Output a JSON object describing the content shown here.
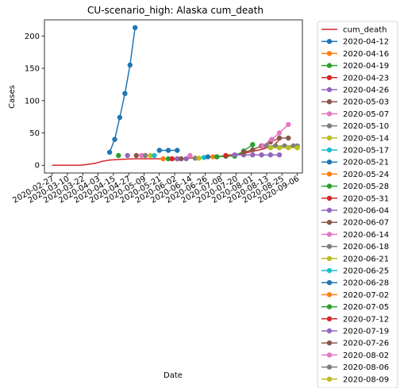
{
  "chart_data": {
    "type": "line",
    "title": "CU-scenario_high: Alaska cum_death",
    "xlabel": "Date",
    "ylabel": "Cases",
    "ylim": [
      -12,
      225
    ],
    "xlim": [
      "2020-02-21",
      "2020-09-10"
    ],
    "yticks": [
      0,
      50,
      100,
      150,
      200
    ],
    "xticks": [
      "2020-02-27",
      "2020-03-10",
      "2020-03-22",
      "2020-04-03",
      "2020-04-15",
      "2020-04-27",
      "2020-05-09",
      "2020-05-21",
      "2020-06-02",
      "2020-06-14",
      "2020-06-26",
      "2020-07-08",
      "2020-07-20",
      "2020-08-01",
      "2020-08-13",
      "2020-08-25",
      "2020-09-06"
    ],
    "grid": false,
    "legend_position": "outside-right",
    "observed": {
      "name": "cum_death",
      "color": "#d62728",
      "points": [
        [
          "2020-02-27",
          0
        ],
        [
          "2020-03-10",
          0
        ],
        [
          "2020-03-20",
          0
        ],
        [
          "2020-03-25",
          1
        ],
        [
          "2020-03-28",
          2
        ],
        [
          "2020-04-01",
          3
        ],
        [
          "2020-04-06",
          6
        ],
        [
          "2020-04-12",
          8
        ],
        [
          "2020-04-20",
          9
        ],
        [
          "2020-05-01",
          10
        ],
        [
          "2020-05-20",
          10
        ],
        [
          "2020-06-02",
          10
        ],
        [
          "2020-06-12",
          11
        ],
        [
          "2020-06-25",
          12
        ],
        [
          "2020-07-05",
          13
        ],
        [
          "2020-07-15",
          16
        ],
        [
          "2020-07-25",
          18
        ],
        [
          "2020-08-01",
          21
        ],
        [
          "2020-08-10",
          25
        ],
        [
          "2020-08-18",
          30
        ],
        [
          "2020-08-25",
          43
        ]
      ]
    },
    "series": [
      {
        "name": "2020-04-12",
        "color": "#1f77b4",
        "points": [
          [
            "2020-04-12",
            20
          ],
          [
            "2020-04-16",
            40
          ],
          [
            "2020-04-20",
            74
          ],
          [
            "2020-04-24",
            111
          ],
          [
            "2020-04-28",
            155
          ],
          [
            "2020-05-02",
            213
          ]
        ]
      },
      {
        "name": "2020-04-16",
        "color": "#ff7f0e",
        "points": []
      },
      {
        "name": "2020-04-19",
        "color": "#2ca02c",
        "points": [
          [
            "2020-04-19",
            15
          ]
        ]
      },
      {
        "name": "2020-04-23",
        "color": "#d62728",
        "points": []
      },
      {
        "name": "2020-04-26",
        "color": "#9467bd",
        "points": [
          [
            "2020-04-26",
            15
          ]
        ]
      },
      {
        "name": "2020-05-03",
        "color": "#8c564b",
        "points": [
          [
            "2020-05-03",
            15
          ]
        ]
      },
      {
        "name": "2020-05-07",
        "color": "#e377c2",
        "points": [
          [
            "2020-05-07",
            15
          ]
        ]
      },
      {
        "name": "2020-05-10",
        "color": "#7f7f7f",
        "points": [
          [
            "2020-05-10",
            15
          ]
        ]
      },
      {
        "name": "2020-05-14",
        "color": "#bcbd22",
        "points": [
          [
            "2020-05-14",
            15
          ]
        ]
      },
      {
        "name": "2020-05-17",
        "color": "#17becf",
        "points": [
          [
            "2020-05-17",
            15
          ]
        ]
      },
      {
        "name": "2020-05-21",
        "color": "#1f77b4",
        "points": [
          [
            "2020-05-21",
            23
          ],
          [
            "2020-05-28",
            23
          ],
          [
            "2020-06-04",
            23
          ]
        ]
      },
      {
        "name": "2020-05-24",
        "color": "#ff7f0e",
        "points": [
          [
            "2020-05-24",
            10
          ]
        ]
      },
      {
        "name": "2020-05-28",
        "color": "#2ca02c",
        "points": [
          [
            "2020-05-28",
            10
          ]
        ]
      },
      {
        "name": "2020-05-31",
        "color": "#d62728",
        "points": [
          [
            "2020-05-31",
            10
          ],
          [
            "2020-06-04",
            10
          ]
        ]
      },
      {
        "name": "2020-06-04",
        "color": "#9467bd",
        "points": [
          [
            "2020-06-04",
            10
          ],
          [
            "2020-06-11",
            10
          ]
        ]
      },
      {
        "name": "2020-06-07",
        "color": "#8c564b",
        "points": [
          [
            "2020-06-07",
            10
          ]
        ]
      },
      {
        "name": "2020-06-14",
        "color": "#e377c2",
        "points": [
          [
            "2020-06-14",
            15
          ]
        ]
      },
      {
        "name": "2020-06-18",
        "color": "#7f7f7f",
        "points": [
          [
            "2020-06-18",
            11
          ]
        ]
      },
      {
        "name": "2020-06-21",
        "color": "#bcbd22",
        "points": [
          [
            "2020-06-21",
            11
          ]
        ]
      },
      {
        "name": "2020-06-25",
        "color": "#17becf",
        "points": [
          [
            "2020-06-25",
            12
          ]
        ]
      },
      {
        "name": "2020-06-28",
        "color": "#1f77b4",
        "points": [
          [
            "2020-06-28",
            13
          ],
          [
            "2020-07-05",
            13
          ],
          [
            "2020-07-12",
            14
          ]
        ]
      },
      {
        "name": "2020-07-02",
        "color": "#ff7f0e",
        "points": [
          [
            "2020-07-02",
            13
          ]
        ]
      },
      {
        "name": "2020-07-05",
        "color": "#2ca02c",
        "points": [
          [
            "2020-07-05",
            13
          ],
          [
            "2020-07-12",
            14
          ],
          [
            "2020-07-19",
            14
          ],
          [
            "2020-07-26",
            22
          ],
          [
            "2020-08-02",
            32
          ]
        ]
      },
      {
        "name": "2020-07-12",
        "color": "#d62728",
        "points": [
          [
            "2020-07-12",
            15
          ]
        ]
      },
      {
        "name": "2020-07-19",
        "color": "#9467bd",
        "points": [
          [
            "2020-07-19",
            16
          ],
          [
            "2020-07-26",
            16
          ],
          [
            "2020-08-02",
            16
          ],
          [
            "2020-08-09",
            16
          ],
          [
            "2020-08-16",
            16
          ],
          [
            "2020-08-23",
            16
          ]
        ]
      },
      {
        "name": "2020-07-26",
        "color": "#8c564b",
        "points": [
          [
            "2020-07-26",
            20
          ],
          [
            "2020-08-02",
            24
          ],
          [
            "2020-08-09",
            30
          ],
          [
            "2020-08-16",
            36
          ],
          [
            "2020-08-23",
            42
          ],
          [
            "2020-08-30",
            42
          ]
        ]
      },
      {
        "name": "2020-08-02",
        "color": "#e377c2",
        "points": [
          [
            "2020-08-10",
            30
          ],
          [
            "2020-08-17",
            40
          ],
          [
            "2020-08-23",
            50
          ],
          [
            "2020-08-30",
            63
          ]
        ]
      },
      {
        "name": "2020-08-06",
        "color": "#7f7f7f",
        "points": [
          [
            "2020-08-13",
            30
          ],
          [
            "2020-08-20",
            30
          ],
          [
            "2020-08-27",
            30
          ],
          [
            "2020-09-03",
            30
          ],
          [
            "2020-09-06",
            30
          ]
        ]
      },
      {
        "name": "2020-08-09",
        "color": "#bcbd22",
        "points": [
          [
            "2020-08-16",
            27
          ],
          [
            "2020-08-23",
            27
          ],
          [
            "2020-08-30",
            27
          ],
          [
            "2020-09-06",
            27
          ]
        ]
      }
    ]
  }
}
